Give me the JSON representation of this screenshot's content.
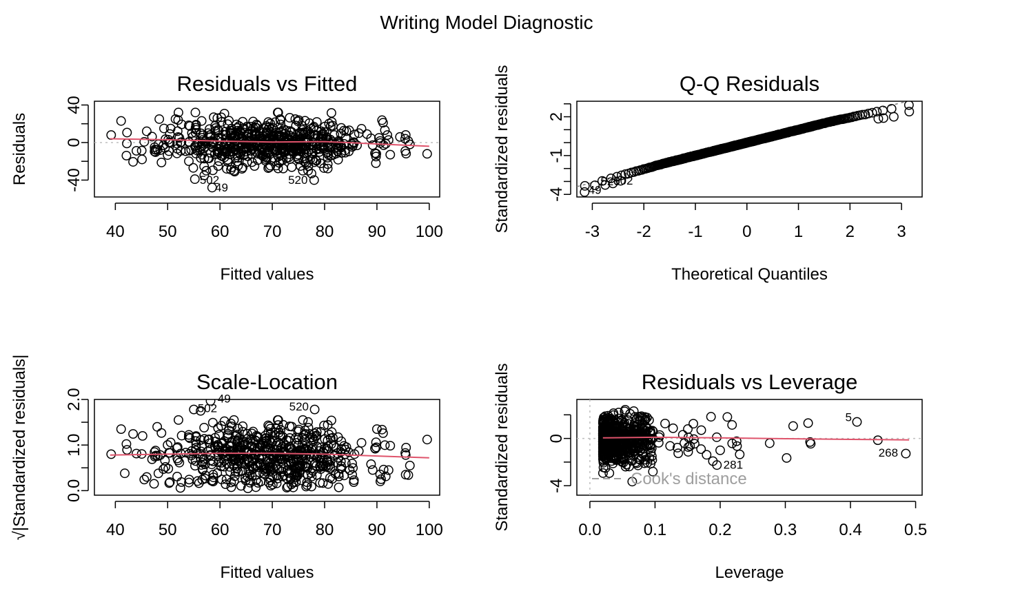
{
  "page": {
    "title": "Writing Model Diagnostic"
  },
  "colors": {
    "point": "#000000",
    "smoother": "#DF536B",
    "reference": "#BEBEBE",
    "cook": "#9E9E9E"
  },
  "chart_data": [
    {
      "id": "resid-fitted",
      "type": "scatter",
      "title": "Residuals vs Fitted",
      "xlabel": "Fitted values",
      "ylabel": "Residuals",
      "xlim": [
        36,
        102
      ],
      "ylim": [
        -58,
        44
      ],
      "xticks": [
        40,
        50,
        60,
        70,
        80,
        90,
        100
      ],
      "yticks": [
        40,
        0,
        -40
      ],
      "ytick_labels": [
        "40",
        "0",
        "-40"
      ],
      "ytick_minor": [
        20,
        -20
      ],
      "ref_hline": 0,
      "n_points": 600,
      "point_cloud": {
        "x_mean": 69,
        "x_sd": 9.5,
        "x_range": [
          40,
          96
        ],
        "y_sd": 12,
        "y_range": [
          -30,
          32
        ],
        "seed": 11
      },
      "points": [
        [
          39.2,
          8
        ],
        [
          41.1,
          23
        ],
        [
          42.2,
          -1
        ],
        [
          45.1,
          -18
        ],
        [
          46.0,
          12
        ],
        [
          47.5,
          -5
        ],
        [
          48.4,
          25
        ],
        [
          49.3,
          15
        ],
        [
          51.5,
          25
        ],
        [
          52.0,
          24
        ],
        [
          55.3,
          32
        ],
        [
          56.5,
          23
        ],
        [
          58.8,
          27
        ],
        [
          59.5,
          26
        ],
        [
          60.3,
          22
        ],
        [
          61.3,
          -28
        ],
        [
          62.8,
          -31
        ],
        [
          64.2,
          -28
        ],
        [
          66.6,
          -25
        ],
        [
          71.5,
          25
        ],
        [
          74.4,
          25
        ],
        [
          75.4,
          -25
        ],
        [
          76.5,
          -23
        ],
        [
          80.6,
          -23
        ],
        [
          84.7,
          13
        ],
        [
          86.2,
          -3
        ],
        [
          88.1,
          9
        ],
        [
          89.8,
          -22
        ],
        [
          90.4,
          5
        ],
        [
          92.0,
          8
        ],
        [
          94.4,
          6
        ],
        [
          95.4,
          4
        ],
        [
          96.3,
          -2
        ],
        [
          99.6,
          -12
        ],
        [
          55.2,
          -39
        ],
        [
          57.0,
          -35
        ],
        [
          57.4,
          -30
        ],
        [
          58.5,
          -48
        ],
        [
          78.0,
          -40
        ],
        [
          77.5,
          -33
        ],
        [
          54.9,
          -27
        ]
      ],
      "smoother": [
        [
          39,
          4
        ],
        [
          50,
          3
        ],
        [
          60,
          1.5
        ],
        [
          70,
          0.5
        ],
        [
          80,
          1
        ],
        [
          90,
          -1.5
        ],
        [
          100,
          -4
        ]
      ],
      "point_labels": [
        {
          "text": "502",
          "x": 58.0,
          "y": -44
        },
        {
          "text": "49",
          "x": 60.3,
          "y": -52
        },
        {
          "text": "520",
          "x": 74.9,
          "y": -44
        }
      ]
    },
    {
      "id": "qq",
      "type": "scatter",
      "title": "Q-Q Residuals",
      "xlabel": "Theoretical Quantiles",
      "ylabel": "Standardized residuals",
      "xlim": [
        -3.3,
        3.4
      ],
      "ylim": [
        -4.2,
        3.2
      ],
      "xticks": [
        -3,
        -2,
        -1,
        0,
        1,
        2,
        3
      ],
      "yticks": [
        2,
        -1,
        -4
      ],
      "ytick_labels": [
        "2",
        "-1",
        "-4"
      ],
      "ytick_minor": [
        3,
        1,
        0,
        -2,
        -3
      ],
      "ref_line": {
        "intercept": 0,
        "slope": 1.03
      },
      "qq_curve": {
        "n": 600,
        "tail_low_scale": 1.12,
        "tail_high_scale": 0.85,
        "seed": 23
      },
      "points": [
        [
          -3.15,
          -3.82
        ],
        [
          -2.95,
          -3.3
        ],
        [
          -2.75,
          -3.27
        ],
        [
          -2.6,
          -3.15
        ],
        [
          -2.45,
          -2.95
        ],
        [
          2.55,
          1.85
        ],
        [
          2.65,
          1.9
        ],
        [
          2.85,
          2.0
        ],
        [
          3.15,
          2.4
        ]
      ],
      "point_labels": [
        {
          "text": "49",
          "x": -2.95,
          "y": -3.95
        },
        {
          "text": "520",
          "x": -2.65,
          "y": -3.3
        },
        {
          "text": "502",
          "x": -2.4,
          "y": -3.25
        }
      ]
    },
    {
      "id": "scale-location",
      "type": "scatter",
      "title": "Scale-Location",
      "xlabel": "Fitted values",
      "ylabel": "√|Standardized residuals|",
      "xlim": [
        36,
        102
      ],
      "ylim": [
        -0.1,
        2.0
      ],
      "xticks": [
        40,
        50,
        60,
        70,
        80,
        90,
        100
      ],
      "yticks": [
        0.0,
        1.0,
        2.0
      ],
      "ytick_labels": [
        "0.0",
        "1.0",
        "2.0"
      ],
      "ytick_minor": [
        0.5,
        1.5
      ],
      "n_points": 600,
      "point_cloud": {
        "x_mean": 69,
        "x_sd": 9.5,
        "x_range": [
          40,
          96
        ],
        "y_range": [
          0.05,
          1.55
        ],
        "seed": 11
      },
      "points": [
        [
          39.2,
          0.8
        ],
        [
          41.1,
          1.35
        ],
        [
          41.8,
          0.38
        ],
        [
          45.2,
          1.2
        ],
        [
          46.0,
          0.3
        ],
        [
          47.4,
          0.15
        ],
        [
          48.0,
          1.4
        ],
        [
          55.0,
          1.78
        ],
        [
          56.3,
          1.75
        ],
        [
          58.2,
          1.97
        ],
        [
          74.0,
          0.07
        ],
        [
          77.5,
          0.09
        ],
        [
          78.1,
          1.78
        ],
        [
          90.0,
          1.35
        ],
        [
          90.8,
          0.25
        ],
        [
          95.5,
          0.35
        ],
        [
          96.3,
          0.55
        ],
        [
          99.6,
          1.12
        ],
        [
          84.8,
          0.45
        ]
      ],
      "smoother": [
        [
          39,
          0.78
        ],
        [
          50,
          0.8
        ],
        [
          60,
          0.82
        ],
        [
          70,
          0.82
        ],
        [
          80,
          0.8
        ],
        [
          90,
          0.76
        ],
        [
          100,
          0.72
        ]
      ],
      "point_labels": [
        {
          "text": "502",
          "x": 57.6,
          "y": 1.72
        },
        {
          "text": "49",
          "x": 60.8,
          "y": 1.93
        },
        {
          "text": "520",
          "x": 75.1,
          "y": 1.76
        }
      ]
    },
    {
      "id": "resid-leverage",
      "type": "scatter",
      "title": "Residuals vs Leverage",
      "xlabel": "Leverage",
      "ylabel": "Standardized residuals",
      "xlim": [
        -0.02,
        0.51
      ],
      "ylim": [
        -4.8,
        3.3
      ],
      "xticks": [
        0.0,
        0.1,
        0.2,
        0.3,
        0.4,
        0.5
      ],
      "xtick_labels": [
        "0.0",
        "0.1",
        "0.2",
        "0.3",
        "0.4",
        "0.5"
      ],
      "yticks": [
        0,
        -4
      ],
      "ytick_labels": [
        "0",
        "-4"
      ],
      "ytick_minor": [
        2,
        -2
      ],
      "ref_hline": 0,
      "ref_vline": 0,
      "n_points": 600,
      "point_cloud": {
        "x_range": [
          0.02,
          0.24
        ],
        "y_sd": 1.0,
        "y_range": [
          -3.2,
          2.6
        ],
        "seed": 37
      },
      "points": [
        [
          0.276,
          -0.4
        ],
        [
          0.302,
          -1.65
        ],
        [
          0.312,
          1.05
        ],
        [
          0.335,
          1.3
        ],
        [
          0.338,
          -0.3
        ],
        [
          0.339,
          -0.45
        ],
        [
          0.41,
          1.4
        ],
        [
          0.442,
          -0.15
        ],
        [
          0.485,
          -1.28
        ],
        [
          0.195,
          -2.25
        ],
        [
          0.065,
          -3.65
        ],
        [
          0.2,
          -1.0
        ],
        [
          0.211,
          1.82
        ],
        [
          0.23,
          -1.35
        ]
      ],
      "smoother": [
        [
          0.02,
          0.05
        ],
        [
          0.1,
          0.1
        ],
        [
          0.2,
          0.05
        ],
        [
          0.3,
          -0.02
        ],
        [
          0.4,
          -0.08
        ],
        [
          0.49,
          -0.12
        ]
      ],
      "point_labels": [
        {
          "text": "5",
          "x": 0.397,
          "y": 1.45
        },
        {
          "text": "268",
          "x": 0.458,
          "y": -1.55
        },
        {
          "text": "281",
          "x": 0.22,
          "y": -2.55
        }
      ],
      "legend": {
        "label": "Cook's distance",
        "placement": "bottom-left"
      }
    }
  ]
}
